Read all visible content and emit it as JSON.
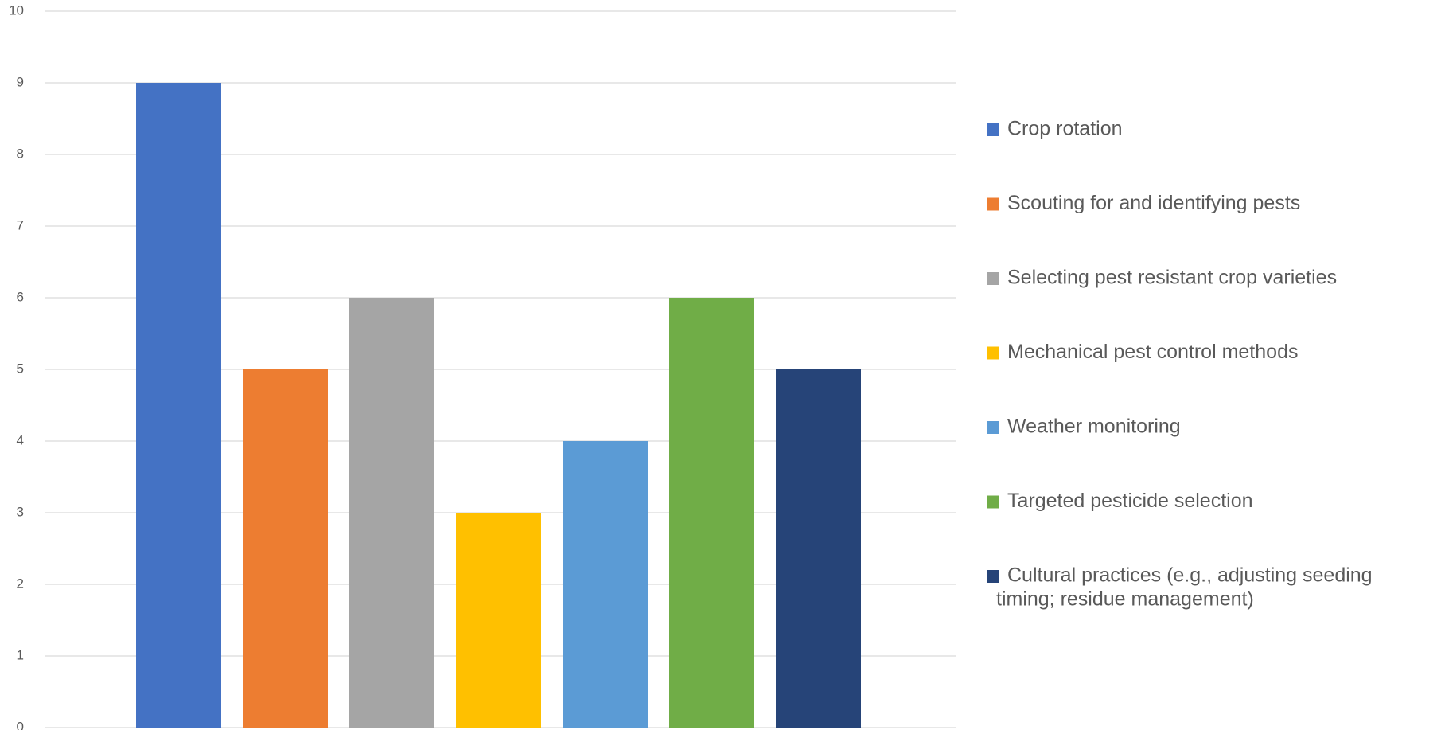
{
  "chart_data": {
    "type": "bar",
    "title": "",
    "xlabel": "",
    "ylabel": "",
    "ylim": [
      0,
      10
    ],
    "ytick_step": 1,
    "yticks": [
      "0",
      "1",
      "2",
      "3",
      "4",
      "5",
      "6",
      "7",
      "8",
      "9",
      "10"
    ],
    "grid": true,
    "legend_position": "right",
    "series": [
      {
        "name": "Crop rotation",
        "values": [
          9
        ],
        "color": "#4472C4"
      },
      {
        "name": "Scouting for and identifying pests",
        "values": [
          5
        ],
        "color": "#ED7D31"
      },
      {
        "name": "Selecting pest resistant  crop varieties",
        "values": [
          6
        ],
        "color": "#A5A5A5"
      },
      {
        "name": "Mechanical pest control methods",
        "values": [
          3
        ],
        "color": "#FFC000"
      },
      {
        "name": "Weather monitoring",
        "values": [
          4
        ],
        "color": "#5B9BD5"
      },
      {
        "name": "Targeted pesticide selection",
        "values": [
          6
        ],
        "color": "#70AD47"
      },
      {
        "name": "Cultural practices (e.g., adjusting seeding timing; residue management)",
        "values": [
          5
        ],
        "color": "#264478"
      }
    ],
    "legend_lines": [
      [
        "Crop rotation"
      ],
      [
        "Scouting for and identifying pests"
      ],
      [
        "Selecting pest resistant  crop varieties"
      ],
      [
        "Mechanical pest control methods"
      ],
      [
        "Weather monitoring"
      ],
      [
        "Targeted pesticide selection"
      ],
      [
        "Cultural practices (e.g., adjusting seeding",
        "timing; residue management)"
      ]
    ]
  }
}
